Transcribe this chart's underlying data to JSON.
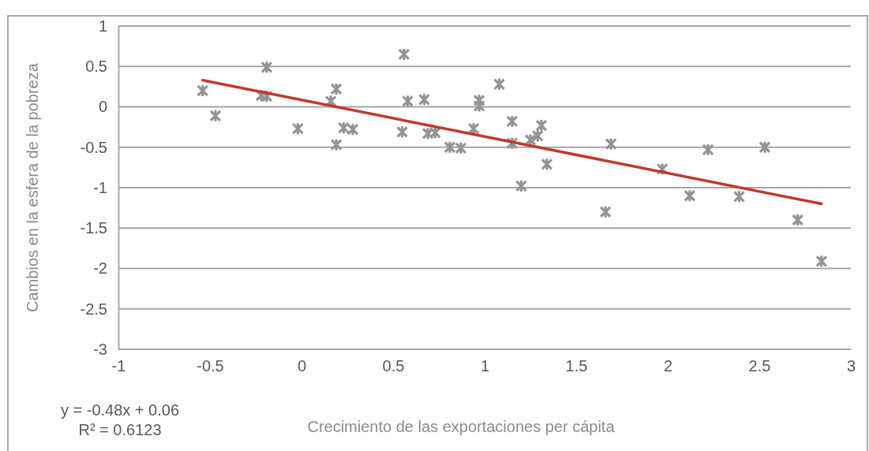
{
  "chart_data": {
    "type": "scatter",
    "xlabel": "Crecimiento de las exportaciones per cápita",
    "ylabel": "Cambios en la esfera de la pobreza",
    "xlim": [
      -1,
      3
    ],
    "xticks": [
      -1,
      -0.5,
      0,
      0.5,
      1,
      1.5,
      2,
      2.5,
      3
    ],
    "ylim": [
      -3,
      1
    ],
    "yticks": [
      -3,
      -2.5,
      -2,
      -1.5,
      -1,
      -0.5,
      0,
      0.5,
      1
    ],
    "grid": "y",
    "marker": "cross",
    "series": [
      {
        "color": "#929497",
        "x": [
          -0.54,
          -0.47,
          -0.22,
          -0.19,
          -0.19,
          -0.02,
          0.16,
          0.19,
          0.23,
          0.28,
          0.19,
          0.56,
          0.58,
          0.67,
          0.55,
          0.69,
          0.73,
          0.81,
          0.87,
          0.94,
          0.97,
          0.97,
          1.08,
          1.15,
          1.15,
          1.25,
          1.29,
          1.31,
          1.34,
          1.69,
          1.2,
          2.22,
          2.53,
          1.97,
          2.12,
          2.39,
          1.66,
          2.71,
          2.84
        ],
        "values": [
          0.2,
          -0.11,
          0.14,
          0.13,
          0.49,
          -0.27,
          0.07,
          0.22,
          -0.26,
          -0.28,
          -0.47,
          0.65,
          0.07,
          0.09,
          -0.31,
          -0.33,
          -0.32,
          -0.5,
          -0.51,
          -0.27,
          0.08,
          0.01,
          0.28,
          -0.18,
          -0.45,
          -0.41,
          -0.36,
          -0.23,
          -0.71,
          -0.46,
          -0.98,
          -0.53,
          -0.5,
          -0.77,
          -1.1,
          -1.11,
          -1.3,
          -1.4,
          -1.91
        ]
      },
      {
        "type": "line",
        "color": "#c0392b",
        "marker": "none",
        "x": [
          -0.54,
          2.84
        ],
        "values": [
          0.33,
          -1.2
        ]
      }
    ],
    "annotations": [
      "y = -0.48x + 0.06",
      "R² = 0.6123"
    ]
  }
}
